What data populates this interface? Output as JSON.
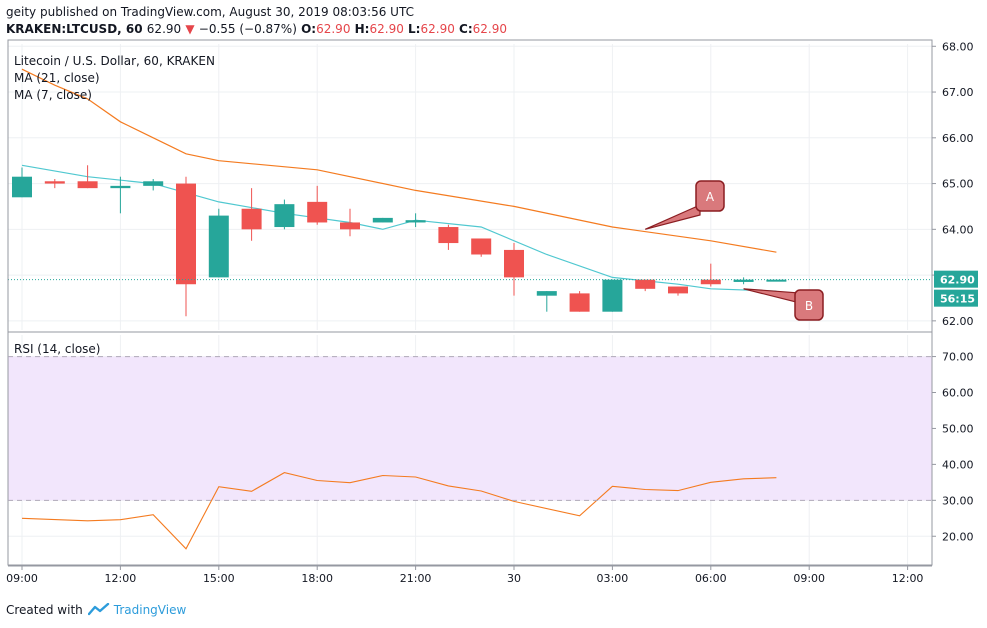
{
  "header": {
    "publisher": "geity",
    "published_text": "published on TradingView.com, August 30, 2019 08:03:56 UTC",
    "symbol_line": "KRAKEN:LTCUSD, 60",
    "last": "62.90",
    "change_arrow": "▼",
    "change": "−0.55 (−0.87%)",
    "open_label": "O:",
    "open": "62.90",
    "high_label": "H:",
    "high": "62.90",
    "low_label": "L:",
    "low": "62.90",
    "close_label": "C:",
    "close": "62.90"
  },
  "legend": {
    "title": "Litecoin / U.S. Dollar, 60, KRAKEN",
    "ma21": "MA (21, close)",
    "ma7": "MA (7, close)",
    "rsi": "RSI (14, close)"
  },
  "footer": {
    "created_with": "Created with",
    "brand": "TradingView"
  },
  "colors": {
    "up": "#26a69a",
    "down": "#ef5350",
    "ma21": "#f47b20",
    "ma7": "#50c8d0",
    "rsi_line": "#f47b20",
    "rsi_band": "#f2e6fc",
    "price_label_bg": "#131722",
    "callout": "#d9797c"
  },
  "chart_data": {
    "type": "candlestick",
    "x_labels": [
      "09:00",
      "12:00",
      "15:00",
      "18:00",
      "21:00",
      "30",
      "03:00",
      "06:00",
      "09:00",
      "12:00"
    ],
    "price_ticks": [
      "62.00",
      "63.00",
      "64.00",
      "65.00",
      "66.00",
      "67.00",
      "68.00"
    ],
    "price_range": [
      61.8,
      68.05
    ],
    "rsi_ticks": [
      "20.00",
      "30.00",
      "40.00",
      "50.00",
      "60.00",
      "70.00"
    ],
    "rsi_range": [
      12,
      76
    ],
    "rsi_band": [
      30,
      70
    ],
    "current_price_label": "62.90",
    "countdown_label": "56:15",
    "candles": [
      {
        "x": 0,
        "o": 64.7,
        "h": 65.35,
        "l": 64.7,
        "c": 65.15
      },
      {
        "x": 1,
        "o": 65.05,
        "h": 65.1,
        "l": 64.9,
        "c": 65.0
      },
      {
        "x": 2,
        "o": 65.05,
        "h": 65.4,
        "l": 64.9,
        "c": 64.9
      },
      {
        "x": 3,
        "o": 64.9,
        "h": 65.15,
        "l": 64.35,
        "c": 64.95
      },
      {
        "x": 4,
        "o": 64.95,
        "h": 65.1,
        "l": 64.85,
        "c": 65.05
      },
      {
        "x": 5,
        "o": 65.0,
        "h": 65.15,
        "l": 62.1,
        "c": 62.8
      },
      {
        "x": 6,
        "o": 62.95,
        "h": 64.45,
        "l": 62.95,
        "c": 64.3
      },
      {
        "x": 7,
        "o": 64.45,
        "h": 64.9,
        "l": 63.75,
        "c": 64.0
      },
      {
        "x": 8,
        "o": 64.05,
        "h": 64.65,
        "l": 64.0,
        "c": 64.55
      },
      {
        "x": 9,
        "o": 64.6,
        "h": 64.95,
        "l": 64.1,
        "c": 64.15
      },
      {
        "x": 10,
        "o": 64.15,
        "h": 64.45,
        "l": 63.85,
        "c": 64.0
      },
      {
        "x": 11,
        "o": 64.15,
        "h": 64.25,
        "l": 64.15,
        "c": 64.25
      },
      {
        "x": 12,
        "o": 64.15,
        "h": 64.35,
        "l": 64.05,
        "c": 64.2
      },
      {
        "x": 13,
        "o": 64.05,
        "h": 64.1,
        "l": 63.55,
        "c": 63.7
      },
      {
        "x": 14,
        "o": 63.8,
        "h": 63.8,
        "l": 63.4,
        "c": 63.45
      },
      {
        "x": 15,
        "o": 63.55,
        "h": 63.7,
        "l": 62.55,
        "c": 62.95
      },
      {
        "x": 16,
        "o": 62.55,
        "h": 62.65,
        "l": 62.2,
        "c": 62.65
      },
      {
        "x": 17,
        "o": 62.6,
        "h": 62.65,
        "l": 62.2,
        "c": 62.2
      },
      {
        "x": 18,
        "o": 62.2,
        "h": 62.9,
        "l": 62.2,
        "c": 62.9
      },
      {
        "x": 19,
        "o": 62.9,
        "h": 62.9,
        "l": 62.65,
        "c": 62.7
      },
      {
        "x": 20,
        "o": 62.75,
        "h": 62.75,
        "l": 62.55,
        "c": 62.6
      },
      {
        "x": 21,
        "o": 62.9,
        "h": 63.25,
        "l": 62.75,
        "c": 62.8
      },
      {
        "x": 22,
        "o": 62.85,
        "h": 62.95,
        "l": 62.8,
        "c": 62.9
      },
      {
        "x": 23,
        "o": 62.9,
        "h": 62.9,
        "l": 62.9,
        "c": 62.9
      }
    ],
    "ma21": [
      {
        "x": 0,
        "y": 67.5
      },
      {
        "x": 1,
        "y": 67.15
      },
      {
        "x": 2,
        "y": 66.85
      },
      {
        "x": 3,
        "y": 66.35
      },
      {
        "x": 4,
        "y": 66.0
      },
      {
        "x": 5,
        "y": 65.65
      },
      {
        "x": 6,
        "y": 65.5
      },
      {
        "x": 9,
        "y": 65.3
      },
      {
        "x": 12,
        "y": 64.85
      },
      {
        "x": 15,
        "y": 64.5
      },
      {
        "x": 18,
        "y": 64.05
      },
      {
        "x": 21,
        "y": 63.75
      },
      {
        "x": 23,
        "y": 63.5
      }
    ],
    "ma7": [
      {
        "x": 0,
        "y": 65.4
      },
      {
        "x": 2,
        "y": 65.15
      },
      {
        "x": 4,
        "y": 65.0
      },
      {
        "x": 6,
        "y": 64.6
      },
      {
        "x": 8,
        "y": 64.35
      },
      {
        "x": 10,
        "y": 64.15
      },
      {
        "x": 11,
        "y": 64.0
      },
      {
        "x": 12,
        "y": 64.2
      },
      {
        "x": 14,
        "y": 64.05
      },
      {
        "x": 16,
        "y": 63.45
      },
      {
        "x": 18,
        "y": 62.95
      },
      {
        "x": 20,
        "y": 62.8
      },
      {
        "x": 21,
        "y": 62.7
      },
      {
        "x": 23,
        "y": 62.65
      }
    ],
    "rsi": [
      {
        "x": 0,
        "y": 25
      },
      {
        "x": 2,
        "y": 24.3
      },
      {
        "x": 3,
        "y": 24.6
      },
      {
        "x": 4,
        "y": 26
      },
      {
        "x": 5,
        "y": 16.5
      },
      {
        "x": 6,
        "y": 33.8
      },
      {
        "x": 7,
        "y": 32.5
      },
      {
        "x": 8,
        "y": 37.7
      },
      {
        "x": 9,
        "y": 35.5
      },
      {
        "x": 10,
        "y": 34.9
      },
      {
        "x": 11,
        "y": 36.9
      },
      {
        "x": 12,
        "y": 36.5
      },
      {
        "x": 13,
        "y": 34
      },
      {
        "x": 14,
        "y": 32.6
      },
      {
        "x": 15,
        "y": 29.7
      },
      {
        "x": 17,
        "y": 25.7
      },
      {
        "x": 18,
        "y": 33.9
      },
      {
        "x": 19,
        "y": 33
      },
      {
        "x": 20,
        "y": 32.7
      },
      {
        "x": 21,
        "y": 35
      },
      {
        "x": 22,
        "y": 36
      },
      {
        "x": 23,
        "y": 36.3
      }
    ],
    "annotations": [
      {
        "label": "A",
        "target_x": 19,
        "target_y": 64.0
      },
      {
        "label": "B",
        "target_x": 22,
        "target_y": 62.7
      }
    ]
  }
}
